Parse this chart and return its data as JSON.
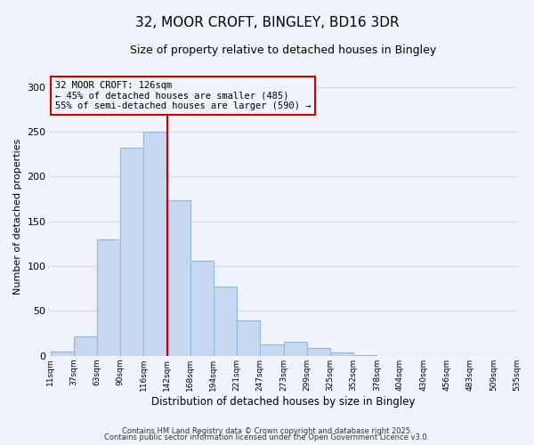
{
  "title": "32, MOOR CROFT, BINGLEY, BD16 3DR",
  "subtitle": "Size of property relative to detached houses in Bingley",
  "xlabel": "Distribution of detached houses by size in Bingley",
  "ylabel": "Number of detached properties",
  "bar_values": [
    5,
    22,
    130,
    232,
    250,
    174,
    106,
    77,
    40,
    13,
    16,
    9,
    4,
    1,
    0,
    0,
    0,
    0,
    0,
    0
  ],
  "bin_labels": [
    "11sqm",
    "37sqm",
    "63sqm",
    "90sqm",
    "116sqm",
    "142sqm",
    "168sqm",
    "194sqm",
    "221sqm",
    "247sqm",
    "273sqm",
    "299sqm",
    "325sqm",
    "352sqm",
    "378sqm",
    "404sqm",
    "430sqm",
    "456sqm",
    "483sqm",
    "509sqm",
    "535sqm"
  ],
  "bar_color": "#c5d8f0",
  "bar_edgecolor": "#8fb8de",
  "vline_x_index": 4,
  "vline_color": "#cc0000",
  "annotation_title": "32 MOOR CROFT: 126sqm",
  "annotation_line1": "← 45% of detached houses are smaller (485)",
  "annotation_line2": "55% of semi-detached houses are larger (590) →",
  "annotation_box_edgecolor": "#cc0000",
  "ylim": [
    0,
    310
  ],
  "yticks": [
    0,
    50,
    100,
    150,
    200,
    250,
    300
  ],
  "footer1": "Contains HM Land Registry data © Crown copyright and database right 2025.",
  "footer2": "Contains public sector information licensed under the Open Government Licence v3.0.",
  "background_color": "#f0f4fa",
  "grid_color": "#c8d8ee",
  "title_fontsize": 11,
  "subtitle_fontsize": 9
}
